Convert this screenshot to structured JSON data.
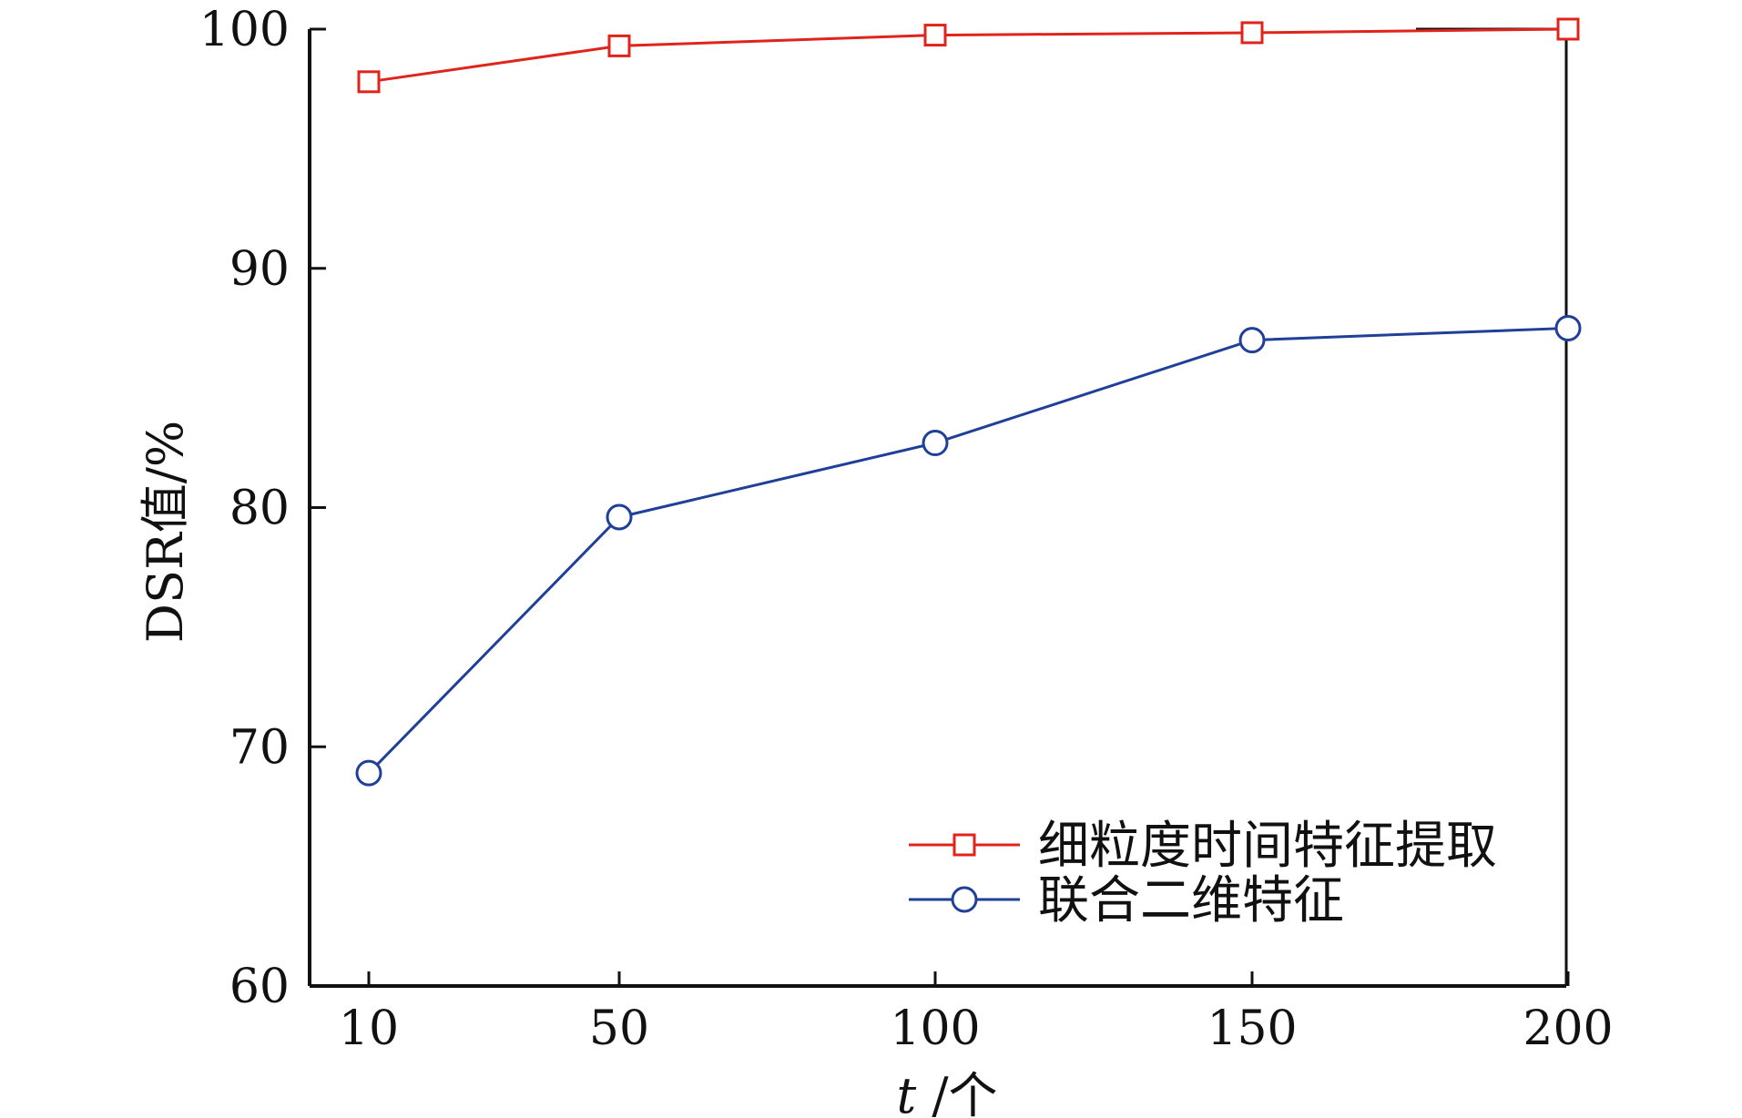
{
  "chart_data": {
    "type": "line",
    "categories": [
      "10",
      "50",
      "100",
      "150",
      "200"
    ],
    "x": [
      10,
      50,
      100,
      150,
      200
    ],
    "ylabel": "DSR值/%",
    "xlabel_italic": "t",
    "xlabel_rest": "/个",
    "ylim": [
      60,
      100
    ],
    "yticks": [
      60,
      70,
      80,
      90,
      100
    ],
    "grid": false,
    "legend_position": "bottom-right",
    "series": [
      {
        "name": "细粒度时间特征提取",
        "marker": "square",
        "color": "#e0241b",
        "values": [
          97.8,
          99.3,
          99.75,
          99.85,
          100
        ]
      },
      {
        "name": "联合二维特征",
        "marker": "circle",
        "color": "#1f3f99",
        "values": [
          68.9,
          79.6,
          82.7,
          87.0,
          87.5
        ]
      }
    ]
  }
}
